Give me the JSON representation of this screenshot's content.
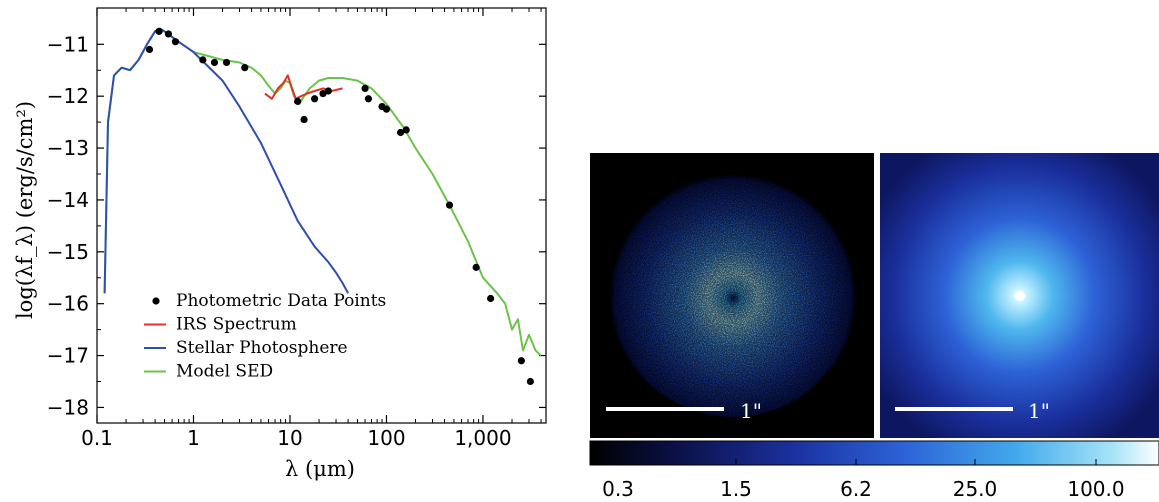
{
  "colors": {
    "photometric": "#000000",
    "irs": "#e0312b",
    "stellar": "#2f4fb0",
    "model": "#6cc34a"
  },
  "chart_data": [
    {
      "type": "line",
      "xlabel": "λ (μm)",
      "ylabel": "log(λf_λ) (erg/s/cm²)",
      "xscale": "log",
      "xlim": [
        0.1,
        4500
      ],
      "ylim": [
        -18.3,
        -10.3
      ],
      "x_ticks": [
        {
          "value": 0.1,
          "label": "0.1"
        },
        {
          "value": 1,
          "label": "1"
        },
        {
          "value": 10,
          "label": "10"
        },
        {
          "value": 100,
          "label": "100"
        },
        {
          "value": 1000,
          "label": "1,000"
        }
      ],
      "y_ticks": [
        {
          "value": -11,
          "label": "−11"
        },
        {
          "value": -12,
          "label": "−12"
        },
        {
          "value": -13,
          "label": "−13"
        },
        {
          "value": -14,
          "label": "−14"
        },
        {
          "value": -15,
          "label": "−15"
        },
        {
          "value": -16,
          "label": "−16"
        },
        {
          "value": -17,
          "label": "−17"
        },
        {
          "value": -18,
          "label": "−18"
        }
      ],
      "legend_position": "bottom-left",
      "series": [
        {
          "name": "Photometric Data Points",
          "kind": "scatter",
          "color": "#000000",
          "points": [
            [
              0.35,
              -11.1
            ],
            [
              0.44,
              -10.75
            ],
            [
              0.55,
              -10.8
            ],
            [
              0.65,
              -10.95
            ],
            [
              1.25,
              -11.3
            ],
            [
              1.65,
              -11.35
            ],
            [
              2.2,
              -11.35
            ],
            [
              3.4,
              -11.45
            ],
            [
              12,
              -12.1
            ],
            [
              14,
              -12.45
            ],
            [
              18,
              -12.05
            ],
            [
              22,
              -11.95
            ],
            [
              25,
              -11.9
            ],
            [
              60,
              -11.85
            ],
            [
              65,
              -12.05
            ],
            [
              90,
              -12.2
            ],
            [
              100,
              -12.25
            ],
            [
              140,
              -12.7
            ],
            [
              160,
              -12.65
            ],
            [
              450,
              -14.1
            ],
            [
              850,
              -15.3
            ],
            [
              1200,
              -15.9
            ],
            [
              2500,
              -17.1
            ],
            [
              3100,
              -17.5
            ]
          ]
        },
        {
          "name": "IRS Spectrum",
          "kind": "line",
          "color": "#e0312b",
          "points": [
            [
              5.5,
              -11.95
            ],
            [
              6.5,
              -12.05
            ],
            [
              7.5,
              -11.85
            ],
            [
              8.5,
              -11.75
            ],
            [
              9.5,
              -11.6
            ],
            [
              10.5,
              -11.85
            ],
            [
              11.5,
              -12.05
            ],
            [
              13,
              -12.0
            ],
            [
              15,
              -11.95
            ],
            [
              18,
              -11.9
            ],
            [
              22,
              -11.85
            ],
            [
              27,
              -11.9
            ],
            [
              35,
              -11.85
            ]
          ]
        },
        {
          "name": "Stellar Photosphere",
          "kind": "line",
          "color": "#2f4fb0",
          "points": [
            [
              0.12,
              -15.8
            ],
            [
              0.13,
              -12.5
            ],
            [
              0.15,
              -11.6
            ],
            [
              0.18,
              -11.45
            ],
            [
              0.22,
              -11.5
            ],
            [
              0.27,
              -11.3
            ],
            [
              0.33,
              -11.0
            ],
            [
              0.4,
              -10.75
            ],
            [
              0.45,
              -10.7
            ],
            [
              0.5,
              -10.75
            ],
            [
              0.7,
              -10.95
            ],
            [
              1,
              -11.15
            ],
            [
              2,
              -11.7
            ],
            [
              3,
              -12.2
            ],
            [
              5,
              -12.9
            ],
            [
              8,
              -13.7
            ],
            [
              12,
              -14.4
            ],
            [
              18,
              -14.9
            ],
            [
              25,
              -15.2
            ],
            [
              30,
              -15.4
            ],
            [
              35,
              -15.6
            ],
            [
              40,
              -15.8
            ]
          ]
        },
        {
          "name": "Model SED",
          "kind": "line",
          "color": "#6cc34a",
          "points": [
            [
              0.12,
              -15.8
            ],
            [
              0.13,
              -12.5
            ],
            [
              0.15,
              -11.6
            ],
            [
              0.18,
              -11.45
            ],
            [
              0.22,
              -11.5
            ],
            [
              0.27,
              -11.3
            ],
            [
              0.33,
              -11.0
            ],
            [
              0.4,
              -10.75
            ],
            [
              0.45,
              -10.7
            ],
            [
              0.5,
              -10.75
            ],
            [
              0.7,
              -10.95
            ],
            [
              1,
              -11.15
            ],
            [
              2,
              -11.3
            ],
            [
              3,
              -11.35
            ],
            [
              4,
              -11.45
            ],
            [
              5,
              -11.6
            ],
            [
              6,
              -11.8
            ],
            [
              7,
              -11.95
            ],
            [
              8,
              -11.85
            ],
            [
              9,
              -11.7
            ],
            [
              10,
              -11.75
            ],
            [
              11,
              -12.0
            ],
            [
              12.5,
              -12.15
            ],
            [
              14,
              -12.0
            ],
            [
              16,
              -11.85
            ],
            [
              20,
              -11.7
            ],
            [
              25,
              -11.65
            ],
            [
              35,
              -11.65
            ],
            [
              50,
              -11.7
            ],
            [
              70,
              -11.85
            ],
            [
              100,
              -12.15
            ],
            [
              150,
              -12.6
            ],
            [
              200,
              -13.0
            ],
            [
              300,
              -13.5
            ],
            [
              450,
              -14.1
            ],
            [
              700,
              -14.8
            ],
            [
              1000,
              -15.5
            ],
            [
              1400,
              -15.8
            ],
            [
              1700,
              -16.0
            ],
            [
              2000,
              -16.5
            ],
            [
              2300,
              -16.3
            ],
            [
              2600,
              -16.9
            ],
            [
              3000,
              -16.6
            ],
            [
              3500,
              -16.9
            ],
            [
              4000,
              -17.0
            ]
          ]
        }
      ]
    },
    {
      "type": "heatmap",
      "panels": [
        {
          "scale_label": "1\"",
          "appearance": "noisy-ring"
        },
        {
          "scale_label": "1\"",
          "appearance": "smooth-disk"
        }
      ],
      "colorbar": {
        "scale": "log",
        "tick_labels": [
          "0.3",
          "1.5",
          "6.2",
          "25.0",
          "100.0"
        ],
        "colors": [
          "#000000",
          "#101a6e",
          "#2a47c8",
          "#3f8fe6",
          "#5ec3f0",
          "#ffffff"
        ]
      }
    }
  ]
}
